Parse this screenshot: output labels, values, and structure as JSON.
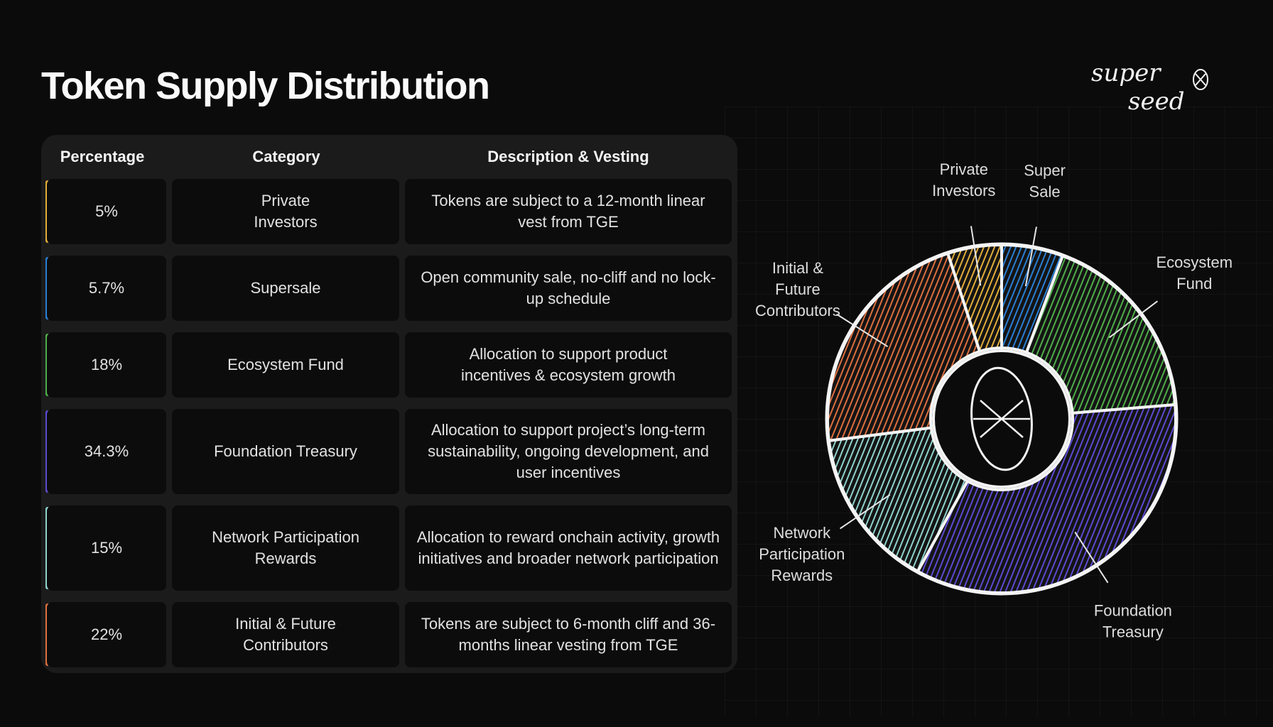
{
  "page": {
    "title": "Token Supply Distribution"
  },
  "logo": {
    "line1": "super",
    "line2": "seed"
  },
  "table": {
    "headers": [
      "Percentage",
      "Category",
      "Description & Vesting"
    ],
    "rows": [
      {
        "percentage": "5%",
        "category": "Private Investors",
        "description": "Tokens are subject to a 12-month linear vest from TGE",
        "color": "#e2ad3a"
      },
      {
        "percentage": "5.7%",
        "category": "Supersale",
        "description": "Open community sale, no-cliff and no lock-up schedule",
        "color": "#2a7fd4"
      },
      {
        "percentage": "18%",
        "category": "Ecosystem Fund",
        "description": "Allocation to support product incentives & ecosystem growth",
        "color": "#4fae4a"
      },
      {
        "percentage": "34.3%",
        "category": "Foundation Treasury",
        "description": "Allocation to support project’s long-term sustainability, ongoing development, and user incentives",
        "color": "#5b4ad1"
      },
      {
        "percentage": "15%",
        "category": "Network Participation Rewards",
        "description": "Allocation to reward onchain activity, growth initiatives and broader network participation",
        "color": "#8fd3cc"
      },
      {
        "percentage": "22%",
        "category": "Initial & Future Contributors",
        "description": "Tokens are subject to 6-month cliff and 36-months linear vesting from TGE",
        "color": "#dd6f3f"
      }
    ]
  },
  "chart_data": {
    "type": "pie",
    "donut": true,
    "title": "",
    "slices": [
      {
        "label": "Super Sale",
        "value": 5.7,
        "color": "#2a7fd4"
      },
      {
        "label": "Ecosystem Fund",
        "value": 18,
        "color": "#4fae4a"
      },
      {
        "label": "Foundation Treasury",
        "value": 34.3,
        "color": "#5b4ad1"
      },
      {
        "label": "Network Participation Rewards",
        "value": 15,
        "color": "#8fd3cc"
      },
      {
        "label": "Initial & Future Contributors",
        "value": 22,
        "color": "#dd6f3f"
      },
      {
        "label": "Private Investors",
        "value": 5,
        "color": "#e2ad3a"
      }
    ],
    "label_lines": [
      [
        "Super",
        "Sale"
      ],
      [
        "Ecosystem",
        "Fund"
      ],
      [
        "Foundation",
        "Treasury"
      ],
      [
        "Network",
        "Participation",
        "Rewards"
      ],
      [
        "Initial &",
        "Future",
        "Contributors"
      ],
      [
        "Private",
        "Investors"
      ]
    ]
  }
}
